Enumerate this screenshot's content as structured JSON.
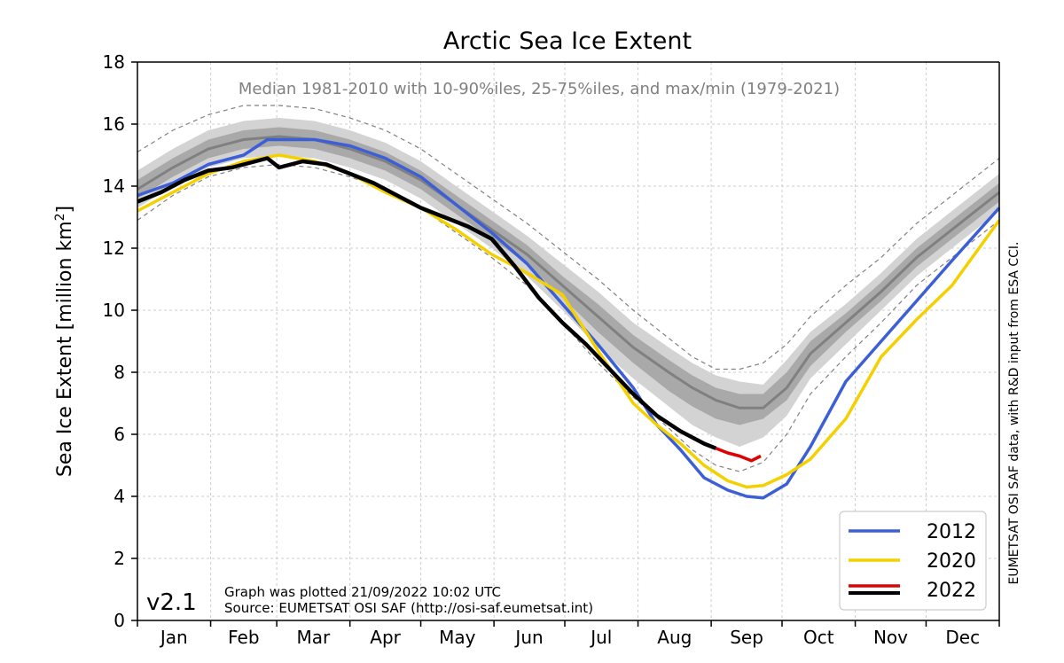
{
  "chart_data": {
    "type": "line",
    "title": "Arctic Sea Ice Extent",
    "subtitle": "Median 1981-2010 with 10-90%iles, 25-75%iles, and max/min (1979-2021)",
    "ylabel": "Sea Ice Extent [million km",
    "ylabel_sup": "2",
    "ylabel_end": "]",
    "xlabel": "",
    "ylim": [
      0,
      18
    ],
    "xlim": [
      0,
      365
    ],
    "yticks": [
      0,
      2,
      4,
      6,
      8,
      10,
      12,
      14,
      16,
      18
    ],
    "months": [
      "Jan",
      "Feb",
      "Mar",
      "Apr",
      "May",
      "Jun",
      "Jul",
      "Aug",
      "Sep",
      "Oct",
      "Nov",
      "Dec"
    ],
    "grid": true,
    "legend_position": "lower-right",
    "version": "v2.1",
    "footnote_line1": "Graph was plotted 21/09/2022 10:02 UTC",
    "footnote_line2": "Source: EUMETSAT OSI SAF (http://osi-saf.eumetsat.int)",
    "side_note": "EUMETSAT OSI SAF data, with R&D input from ESA CCI.",
    "colors": {
      "median": "#808080",
      "band_10_90": "#d3d3d3",
      "band_25_75": "#a9a9a9",
      "minmax": "#808080",
      "2012": "#3d5fd6",
      "2020": "#f5d000",
      "2022_before": "#000000",
      "2022_after": "#e00000"
    },
    "climatology": {
      "x": [
        0,
        15,
        30,
        45,
        60,
        75,
        90,
        105,
        120,
        135,
        150,
        165,
        180,
        195,
        210,
        225,
        235,
        245,
        255,
        265,
        275,
        285,
        300,
        315,
        330,
        345,
        365
      ],
      "median": [
        13.9,
        14.6,
        15.2,
        15.5,
        15.6,
        15.5,
        15.2,
        14.8,
        14.2,
        13.4,
        12.6,
        11.8,
        10.8,
        9.8,
        8.8,
        8.0,
        7.5,
        7.1,
        6.85,
        6.85,
        7.5,
        8.6,
        9.6,
        10.6,
        11.7,
        12.6,
        13.8
      ],
      "p25": [
        13.6,
        14.3,
        14.9,
        15.2,
        15.3,
        15.2,
        14.9,
        14.5,
        13.9,
        13.1,
        12.3,
        11.5,
        10.4,
        9.3,
        8.3,
        7.4,
        6.9,
        6.5,
        6.3,
        6.5,
        7.1,
        8.2,
        9.3,
        10.3,
        11.4,
        12.3,
        13.5
      ],
      "p75": [
        14.2,
        14.9,
        15.5,
        15.8,
        15.9,
        15.8,
        15.5,
        15.1,
        14.5,
        13.7,
        12.9,
        12.1,
        11.1,
        10.2,
        9.2,
        8.4,
        7.9,
        7.5,
        7.3,
        7.3,
        8.0,
        9.0,
        9.9,
        10.9,
        12.0,
        12.9,
        14.1
      ],
      "p10": [
        13.3,
        14.0,
        14.6,
        14.9,
        15.0,
        14.9,
        14.6,
        14.2,
        13.6,
        12.8,
        12.0,
        11.1,
        10.0,
        8.8,
        7.8,
        6.9,
        6.3,
        5.9,
        5.6,
        5.9,
        6.6,
        7.8,
        8.9,
        10.0,
        11.1,
        12.0,
        13.2
      ],
      "p90": [
        14.5,
        15.2,
        15.8,
        16.1,
        16.2,
        16.1,
        15.8,
        15.4,
        14.8,
        14.0,
        13.2,
        12.4,
        11.5,
        10.6,
        9.6,
        8.8,
        8.3,
        7.9,
        7.7,
        7.6,
        8.4,
        9.3,
        10.2,
        11.2,
        12.3,
        13.2,
        14.4
      ],
      "min": [
        12.9,
        13.7,
        14.3,
        14.6,
        14.7,
        14.6,
        14.3,
        13.9,
        13.3,
        12.5,
        11.7,
        10.8,
        9.6,
        8.3,
        7.2,
        6.2,
        5.5,
        5.0,
        4.8,
        5.1,
        6.0,
        7.3,
        8.5,
        9.6,
        10.8,
        11.7,
        12.9
      ],
      "max": [
        15.1,
        15.8,
        16.3,
        16.6,
        16.6,
        16.5,
        16.2,
        15.8,
        15.2,
        14.4,
        13.6,
        12.8,
        11.9,
        11.0,
        10.0,
        9.1,
        8.5,
        8.1,
        8.1,
        8.3,
        8.9,
        9.8,
        10.8,
        11.7,
        12.8,
        13.7,
        14.9
      ]
    },
    "series": [
      {
        "name": "2012",
        "x": [
          0,
          15,
          30,
          45,
          55,
          60,
          75,
          90,
          105,
          120,
          135,
          150,
          165,
          180,
          195,
          210,
          220,
          230,
          240,
          250,
          258,
          265,
          275,
          285,
          300,
          315,
          330,
          345,
          365
        ],
        "values": [
          13.7,
          14.1,
          14.7,
          15.0,
          15.5,
          15.5,
          15.5,
          15.3,
          14.9,
          14.3,
          13.4,
          12.5,
          11.5,
          10.2,
          8.9,
          7.5,
          6.3,
          5.5,
          4.6,
          4.2,
          4.0,
          3.95,
          4.4,
          5.6,
          7.7,
          9.0,
          10.3,
          11.6,
          13.3
        ]
      },
      {
        "name": "2020",
        "x": [
          0,
          15,
          30,
          45,
          60,
          75,
          90,
          105,
          120,
          135,
          150,
          165,
          180,
          195,
          210,
          220,
          230,
          240,
          250,
          258,
          265,
          275,
          285,
          300,
          315,
          330,
          345,
          365
        ],
        "values": [
          13.2,
          13.8,
          14.4,
          14.8,
          15.0,
          14.8,
          14.4,
          13.8,
          13.3,
          12.6,
          11.8,
          11.2,
          10.5,
          8.7,
          7.0,
          6.3,
          5.7,
          5.0,
          4.5,
          4.3,
          4.35,
          4.7,
          5.2,
          6.5,
          8.5,
          9.7,
          10.8,
          12.9
        ]
      },
      {
        "name": "2022",
        "x": [
          0,
          10,
          20,
          30,
          40,
          50,
          55,
          60,
          70,
          80,
          90,
          100,
          110,
          120,
          130,
          140,
          150,
          160,
          170,
          180,
          190,
          200,
          210,
          220,
          230,
          240,
          245
        ],
        "values": [
          13.5,
          13.8,
          14.2,
          14.5,
          14.6,
          14.8,
          14.9,
          14.6,
          14.8,
          14.7,
          14.4,
          14.1,
          13.7,
          13.3,
          13.0,
          12.7,
          12.3,
          11.4,
          10.4,
          9.6,
          8.9,
          8.1,
          7.3,
          6.6,
          6.1,
          5.7,
          5.55
        ]
      },
      {
        "name": "2022 (recent)",
        "x": [
          245,
          250,
          255,
          260,
          264
        ],
        "values": [
          5.55,
          5.4,
          5.3,
          5.15,
          5.3
        ]
      }
    ],
    "legend": [
      {
        "label": "2012",
        "color": "#3d5fd6"
      },
      {
        "label": "2020",
        "color": "#f5d000"
      },
      {
        "label": "2022",
        "color": "#000000",
        "color2": "#e00000"
      }
    ]
  }
}
